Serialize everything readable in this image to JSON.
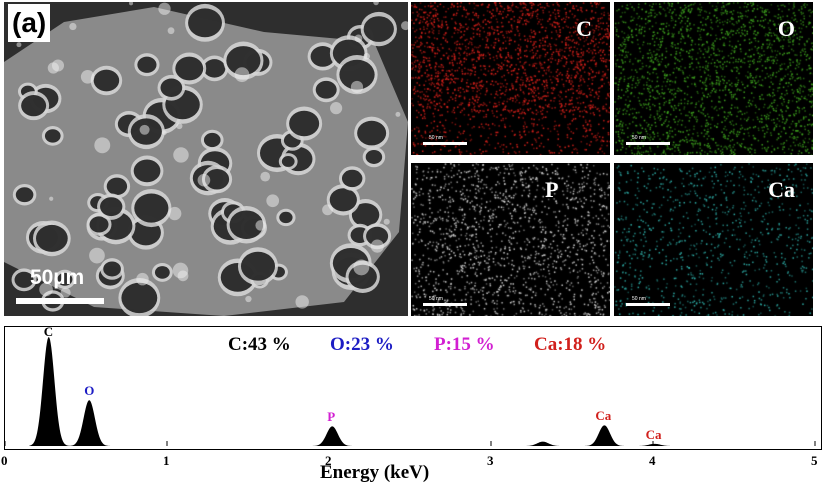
{
  "panel_label": "(a)",
  "sem_scale_label": "50µm",
  "maps": [
    {
      "element": "C",
      "color": "#e0221c"
    },
    {
      "element": "O",
      "color": "#3fa51f"
    },
    {
      "element": "P",
      "color": "#d8d8d8"
    },
    {
      "element": "Ca",
      "color": "#2fb3ad"
    }
  ],
  "map_scale_label": "50 nm",
  "composition": [
    {
      "text": "C:43 %",
      "color": "#000000"
    },
    {
      "text": "O:23 %",
      "color": "#1c1cc4"
    },
    {
      "text": "P:15 %",
      "color": "#d21fd2"
    },
    {
      "text": "Ca:18 %",
      "color": "#d1201c"
    }
  ],
  "chart_data": {
    "type": "line",
    "xlabel": "Energy (keV)",
    "ylabel": "",
    "xlim": [
      0,
      5
    ],
    "x_ticks": [
      "0",
      "1",
      "2",
      "3",
      "4",
      "5"
    ],
    "peaks": [
      {
        "label": "C",
        "energy": 0.27,
        "relative_intensity": 1.0,
        "color": "#000000"
      },
      {
        "label": "O",
        "energy": 0.52,
        "relative_intensity": 0.42,
        "color": "#1c1cc4"
      },
      {
        "label": "P",
        "energy": 2.02,
        "relative_intensity": 0.18,
        "color": "#d21fd2"
      },
      {
        "label": "",
        "energy": 3.32,
        "relative_intensity": 0.04,
        "color": "#000000"
      },
      {
        "label": "Ca",
        "energy": 3.7,
        "relative_intensity": 0.19,
        "color": "#d1201c"
      },
      {
        "label": "Ca",
        "energy": 4.01,
        "relative_intensity": 0.02,
        "color": "#d1201c"
      }
    ]
  }
}
